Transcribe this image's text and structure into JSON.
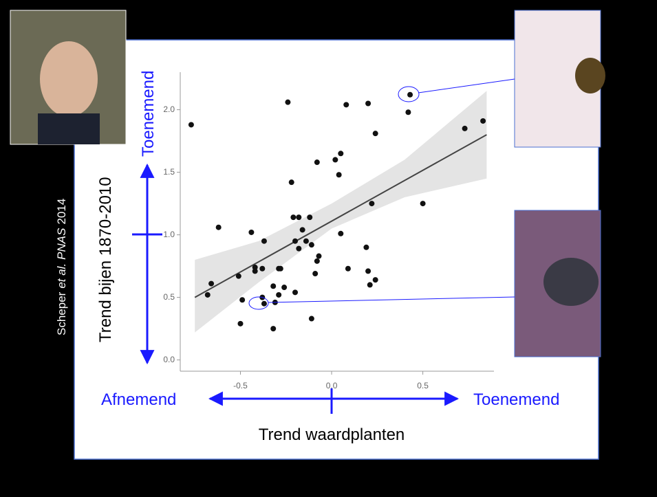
{
  "chart_data": {
    "type": "scatter",
    "x_label": "Trend waardplanten",
    "y_label": "Trend bijen 1870-2010",
    "annotations": {
      "y_up": "Toenemend",
      "x_down": "Afnemend",
      "x_up": "Toenemend"
    },
    "x": [
      -0.77,
      -0.24,
      0.08,
      0.2,
      0.43,
      0.42,
      0.24,
      0.73,
      0.83,
      0.05,
      0.02,
      -0.08,
      0.04,
      -0.22,
      0.22,
      0.5,
      -0.62,
      -0.18,
      -0.21,
      -0.12,
      -0.16,
      -0.44,
      0.05,
      -0.2,
      -0.14,
      -0.37,
      -0.11,
      -0.18,
      0.19,
      -0.07,
      -0.08,
      -0.38,
      -0.42,
      -0.42,
      -0.29,
      -0.28,
      0.09,
      0.2,
      -0.09,
      -0.51,
      0.24,
      0.21,
      -0.66,
      -0.26,
      -0.32,
      -0.29,
      -0.2,
      -0.68,
      -0.49,
      -0.38,
      -0.31,
      -0.37,
      -0.11,
      -0.5,
      -0.32
    ],
    "y": [
      1.88,
      2.06,
      2.04,
      2.05,
      2.12,
      1.98,
      1.81,
      1.85,
      1.91,
      1.65,
      1.6,
      1.58,
      1.48,
      1.42,
      1.25,
      1.25,
      1.06,
      1.14,
      1.14,
      1.14,
      1.04,
      1.02,
      1.01,
      0.95,
      0.95,
      0.95,
      0.92,
      0.89,
      0.9,
      0.83,
      0.79,
      0.73,
      0.74,
      0.71,
      0.73,
      0.73,
      0.73,
      0.71,
      0.69,
      0.67,
      0.64,
      0.6,
      0.61,
      0.58,
      0.59,
      0.52,
      0.54,
      0.52,
      0.48,
      0.5,
      0.46,
      0.45,
      0.33,
      0.29,
      0.25
    ],
    "color": "#111111",
    "trend_line": {
      "x": [
        -0.75,
        0.85
      ],
      "y": [
        0.5,
        1.8
      ],
      "color": "#444444"
    },
    "band": {
      "x": [
        -0.75,
        -0.4,
        0.0,
        0.4,
        0.85
      ],
      "lower": [
        0.22,
        0.62,
        1.05,
        1.3,
        1.45
      ],
      "upper": [
        0.8,
        0.95,
        1.25,
        1.6,
        2.15
      ],
      "color": "#e4e4e4"
    },
    "xlim": [
      -0.83,
      0.89
    ],
    "ylim": [
      -0.09,
      2.3
    ],
    "xticks": [
      -0.5,
      {
        "value": 0,
        "label": "0.0"
      },
      0.5
    ],
    "yticks": [
      {
        "value": 0,
        "label": "0.0"
      },
      0.5,
      {
        "value": 1,
        "label": "1.0"
      },
      1.5,
      {
        "value": 2,
        "label": "2.0"
      }
    ]
  },
  "citation": {
    "author": "Scheper",
    "etal": "et al.",
    "journal": "PNAS",
    "year": "2014"
  }
}
